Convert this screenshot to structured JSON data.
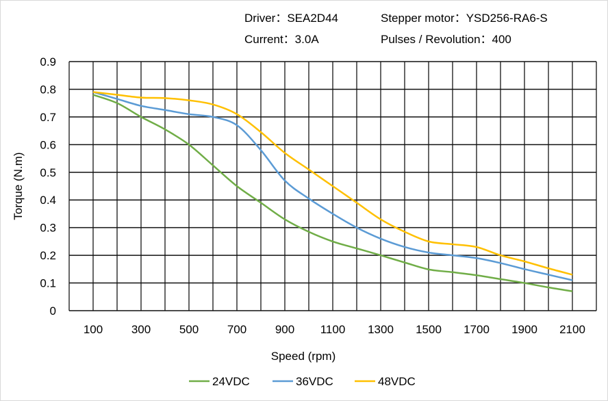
{
  "header": {
    "driver": "Driver：SEA2D44",
    "motor": "Stepper motor：YSD256-RA6-S",
    "current": "Current：3.0A",
    "pulses": "Pulses / Revolution：400"
  },
  "chart_data": {
    "type": "line",
    "title": "",
    "xlabel": "Speed (rpm)",
    "ylabel": "Torque (N.m)",
    "x": [
      100,
      200,
      300,
      400,
      500,
      600,
      700,
      800,
      900,
      1000,
      1100,
      1200,
      1300,
      1400,
      1500,
      1600,
      1700,
      1800,
      1900,
      2000,
      2100
    ],
    "xlim": [
      0,
      2200
    ],
    "x_tick_labels": [
      "100",
      "300",
      "500",
      "700",
      "900",
      "1100",
      "1300",
      "1500",
      "1700",
      "1900",
      "2100"
    ],
    "ylim": [
      0,
      0.9
    ],
    "y_tick_labels": [
      "0",
      "0.1",
      "0.2",
      "0.3",
      "0.4",
      "0.5",
      "0.6",
      "0.7",
      "0.8",
      "0.9"
    ],
    "grid": true,
    "legend_position": "bottom",
    "series": [
      {
        "name": "24VDC",
        "color": "#70AD47",
        "values": [
          0.78,
          0.75,
          0.7,
          0.655,
          0.6,
          0.525,
          0.45,
          0.39,
          0.33,
          0.285,
          0.25,
          0.225,
          0.2,
          0.174,
          0.149,
          0.139,
          0.128,
          0.114,
          0.1,
          0.084,
          0.07
        ]
      },
      {
        "name": "36VDC",
        "color": "#5B9BD5",
        "values": [
          0.79,
          0.765,
          0.74,
          0.725,
          0.71,
          0.7,
          0.67,
          0.58,
          0.47,
          0.405,
          0.35,
          0.3,
          0.26,
          0.23,
          0.21,
          0.2,
          0.19,
          0.172,
          0.15,
          0.13,
          0.11
        ]
      },
      {
        "name": "48VDC",
        "color": "#FFC000",
        "values": [
          0.79,
          0.78,
          0.77,
          0.768,
          0.76,
          0.745,
          0.71,
          0.645,
          0.57,
          0.51,
          0.45,
          0.39,
          0.33,
          0.285,
          0.25,
          0.24,
          0.23,
          0.2,
          0.178,
          0.153,
          0.13
        ]
      }
    ]
  }
}
